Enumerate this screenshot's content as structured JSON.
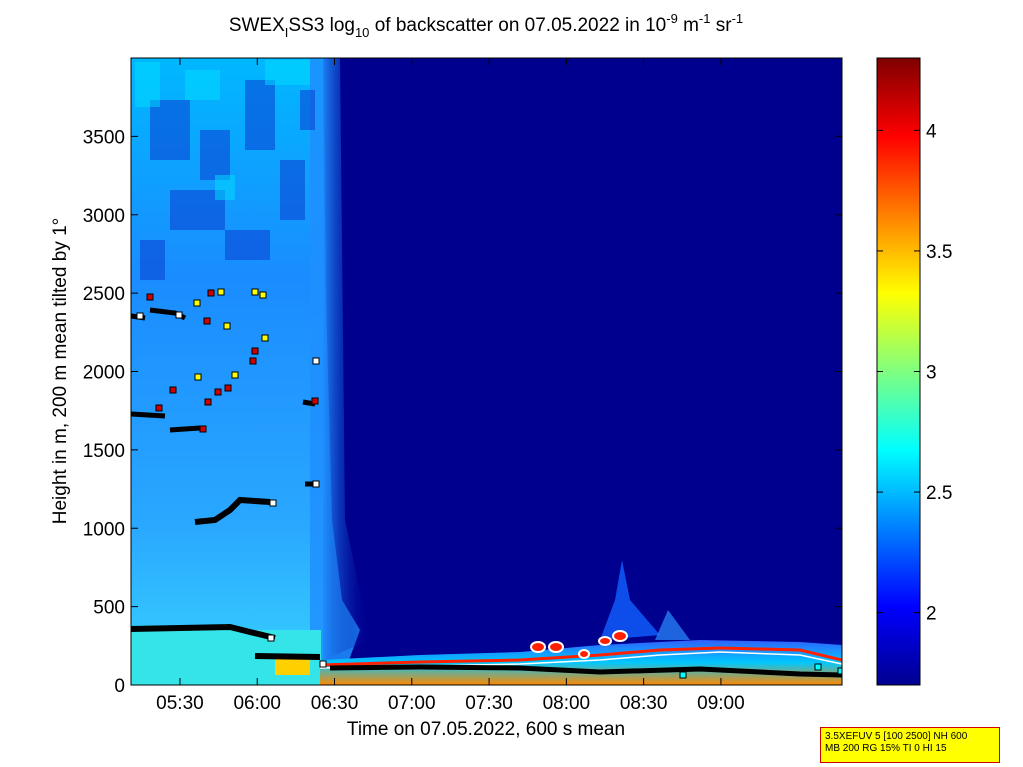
{
  "chart_data": {
    "type": "heatmap",
    "title_parts": {
      "prefix": "SWEX",
      "sub1": "I",
      "middle": "SS3 log",
      "sub2": "10",
      "after_log": " of backscatter on 07.05.2022 in 10",
      "sup1": "-9",
      "unit1": " m",
      "sup2": "-1",
      "unit2": " sr",
      "sup3": "-1"
    },
    "xlabel": "Time on 07.05.2022, 600 s mean",
    "ylabel": "Height in m, 200 m mean tilted by 1°",
    "x_ticks": [
      "05:30",
      "06:00",
      "06:30",
      "07:00",
      "07:30",
      "08:00",
      "08:30",
      "09:00"
    ],
    "x_tick_minutes": [
      330,
      360,
      390,
      420,
      450,
      480,
      510,
      540
    ],
    "xlim_minutes": [
      311,
      587
    ],
    "y_ticks": [
      "0",
      "500",
      "1000",
      "1500",
      "2000",
      "2500",
      "3000",
      "3500"
    ],
    "y_tick_values": [
      0,
      500,
      1000,
      1500,
      2000,
      2500,
      3000,
      3500
    ],
    "ylim": [
      0,
      4000
    ],
    "colorbar": {
      "ticks": [
        "2",
        "2.5",
        "3",
        "3.5",
        "4"
      ],
      "tick_values": [
        2,
        2.5,
        3,
        3.5,
        4
      ],
      "range": [
        1.7,
        4.3
      ],
      "colormap": "jet"
    },
    "info_box": {
      "line1": "3.5XEFUV 5 [100 2500] NH 600",
      "line2": "MB 200 RG 15% TI 0 HI 15"
    },
    "colors": {
      "background_low": "#00008f",
      "high": "#7f0000",
      "box_fill": "#ffff00",
      "box_border": "#d00000"
    }
  }
}
